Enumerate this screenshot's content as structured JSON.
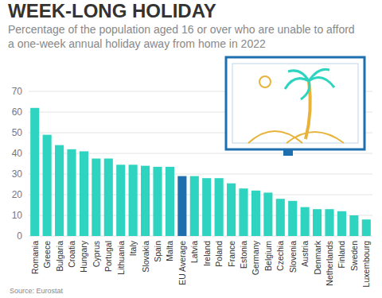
{
  "chart_data": {
    "type": "bar",
    "title": "WEEK-LONG HOLIDAY",
    "subtitle": "Percentage of the population aged 16 or over who are unable to afford a one-week annual holiday away from home in 2022",
    "source": "Source: Eurostat",
    "categories": [
      "Romania",
      "Greece",
      "Bulgaria",
      "Croatia",
      "Hungary",
      "Cyprus",
      "Portugal",
      "Lithuania",
      "Italy",
      "Slovakia",
      "Spain",
      "Malta",
      "EU Average",
      "Latvia",
      "Ireland",
      "Poland",
      "France",
      "Estonia",
      "Germany",
      "Belgium",
      "Czechia",
      "Slovenia",
      "Austria",
      "Denmark",
      "Netherlands",
      "Finland",
      "Sweden",
      "Luxembourg"
    ],
    "values": [
      62,
      49,
      44,
      42,
      41,
      37.5,
      37.5,
      34.5,
      34.5,
      34,
      33.5,
      33.5,
      29,
      29,
      28,
      28,
      25.5,
      23,
      22,
      21,
      18,
      17,
      14,
      13,
      13,
      12,
      10,
      8
    ],
    "colors": [
      "#2fd4c0",
      "#2fd4c0",
      "#2fd4c0",
      "#2fd4c0",
      "#2fd4c0",
      "#2fd4c0",
      "#2fd4c0",
      "#2fd4c0",
      "#2fd4c0",
      "#2fd4c0",
      "#2fd4c0",
      "#2fd4c0",
      "#1e6fae",
      "#2fd4c0",
      "#2fd4c0",
      "#2fd4c0",
      "#2fd4c0",
      "#2fd4c0",
      "#2fd4c0",
      "#2fd4c0",
      "#2fd4c0",
      "#2fd4c0",
      "#2fd4c0",
      "#2fd4c0",
      "#2fd4c0",
      "#2fd4c0",
      "#2fd4c0",
      "#2fd4c0"
    ],
    "ylim": [
      0,
      70
    ],
    "yticks": [
      0,
      10,
      20,
      30,
      40,
      50,
      60,
      70
    ],
    "grid": true
  }
}
